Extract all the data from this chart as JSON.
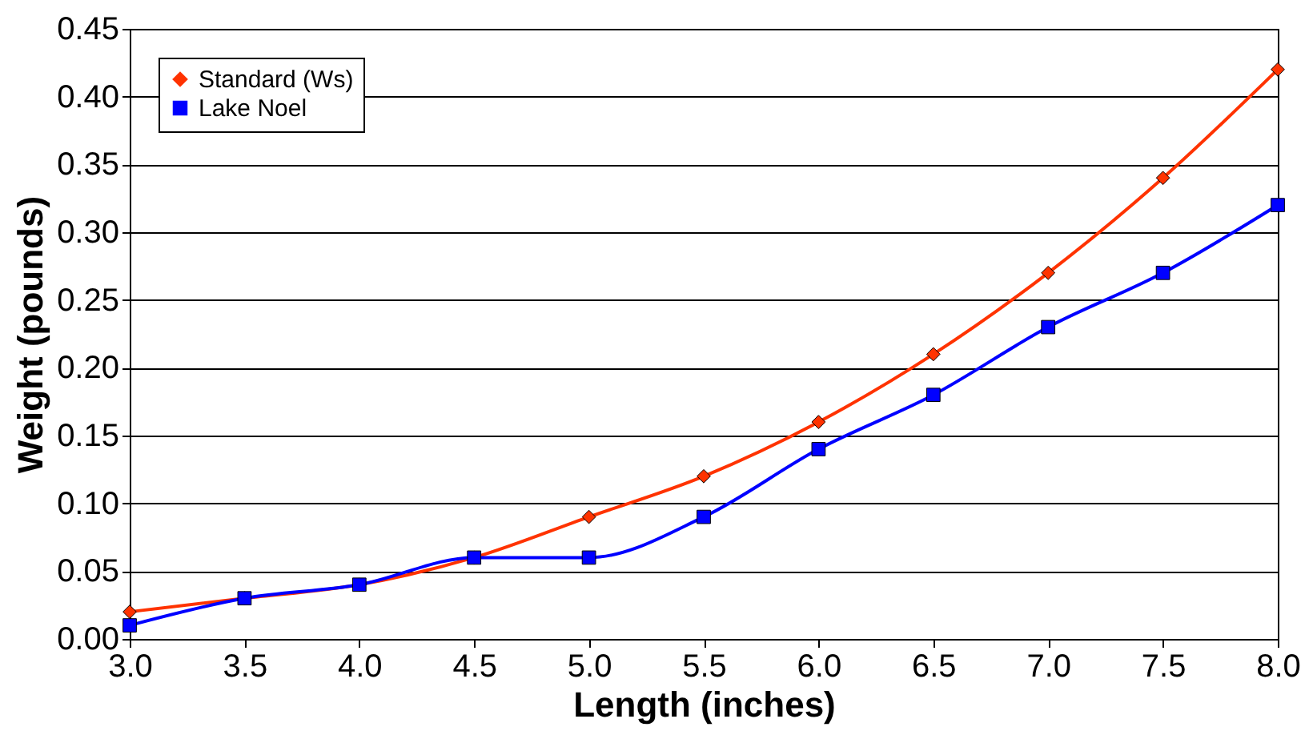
{
  "chart_data": {
    "type": "line",
    "xlabel": "Length (inches)",
    "ylabel": "Weight (pounds)",
    "x": [
      3.0,
      3.5,
      4.0,
      4.5,
      5.0,
      5.5,
      6.0,
      6.5,
      7.0,
      7.5,
      8.0
    ],
    "series": [
      {
        "name": "Standard (Ws)",
        "color": "#ff3300",
        "marker": "diamond",
        "values": [
          0.02,
          0.03,
          0.04,
          0.06,
          0.09,
          0.12,
          0.16,
          0.21,
          0.27,
          0.34,
          0.42
        ]
      },
      {
        "name": "Lake Noel",
        "color": "#0000ff",
        "marker": "square",
        "values": [
          0.01,
          0.03,
          0.04,
          0.06,
          0.06,
          0.09,
          0.14,
          0.18,
          0.23,
          0.27,
          0.32
        ]
      }
    ],
    "xlim": [
      3.0,
      8.0
    ],
    "xticks": [
      {
        "value": 3.0,
        "label": "3.0"
      },
      {
        "value": 3.5,
        "label": "3.5"
      },
      {
        "value": 4.0,
        "label": "4.0"
      },
      {
        "value": 4.5,
        "label": "4.5"
      },
      {
        "value": 5.0,
        "label": "5.0"
      },
      {
        "value": 5.5,
        "label": "5.5"
      },
      {
        "value": 6.0,
        "label": "6.0"
      },
      {
        "value": 6.5,
        "label": "6.5"
      },
      {
        "value": 7.0,
        "label": "7.0"
      },
      {
        "value": 7.5,
        "label": "7.5"
      },
      {
        "value": 8.0,
        "label": "8.0"
      }
    ],
    "ylim": [
      0,
      0.45
    ],
    "yticks": [
      {
        "value": 0,
        "label": "0.00"
      },
      {
        "value": 0.05,
        "label": "0.05"
      },
      {
        "value": 0.1,
        "label": "0.10"
      },
      {
        "value": 0.15,
        "label": "0.15"
      },
      {
        "value": 0.2,
        "label": "0.20"
      },
      {
        "value": 0.25,
        "label": "0.25"
      },
      {
        "value": 0.3,
        "label": "0.30"
      },
      {
        "value": 0.35,
        "label": "0.35"
      },
      {
        "value": 0.4,
        "label": "0.40"
      },
      {
        "value": 0.45,
        "label": "0.45"
      }
    ],
    "grid": "y",
    "legend": "top left",
    "line_style": "solid"
  }
}
